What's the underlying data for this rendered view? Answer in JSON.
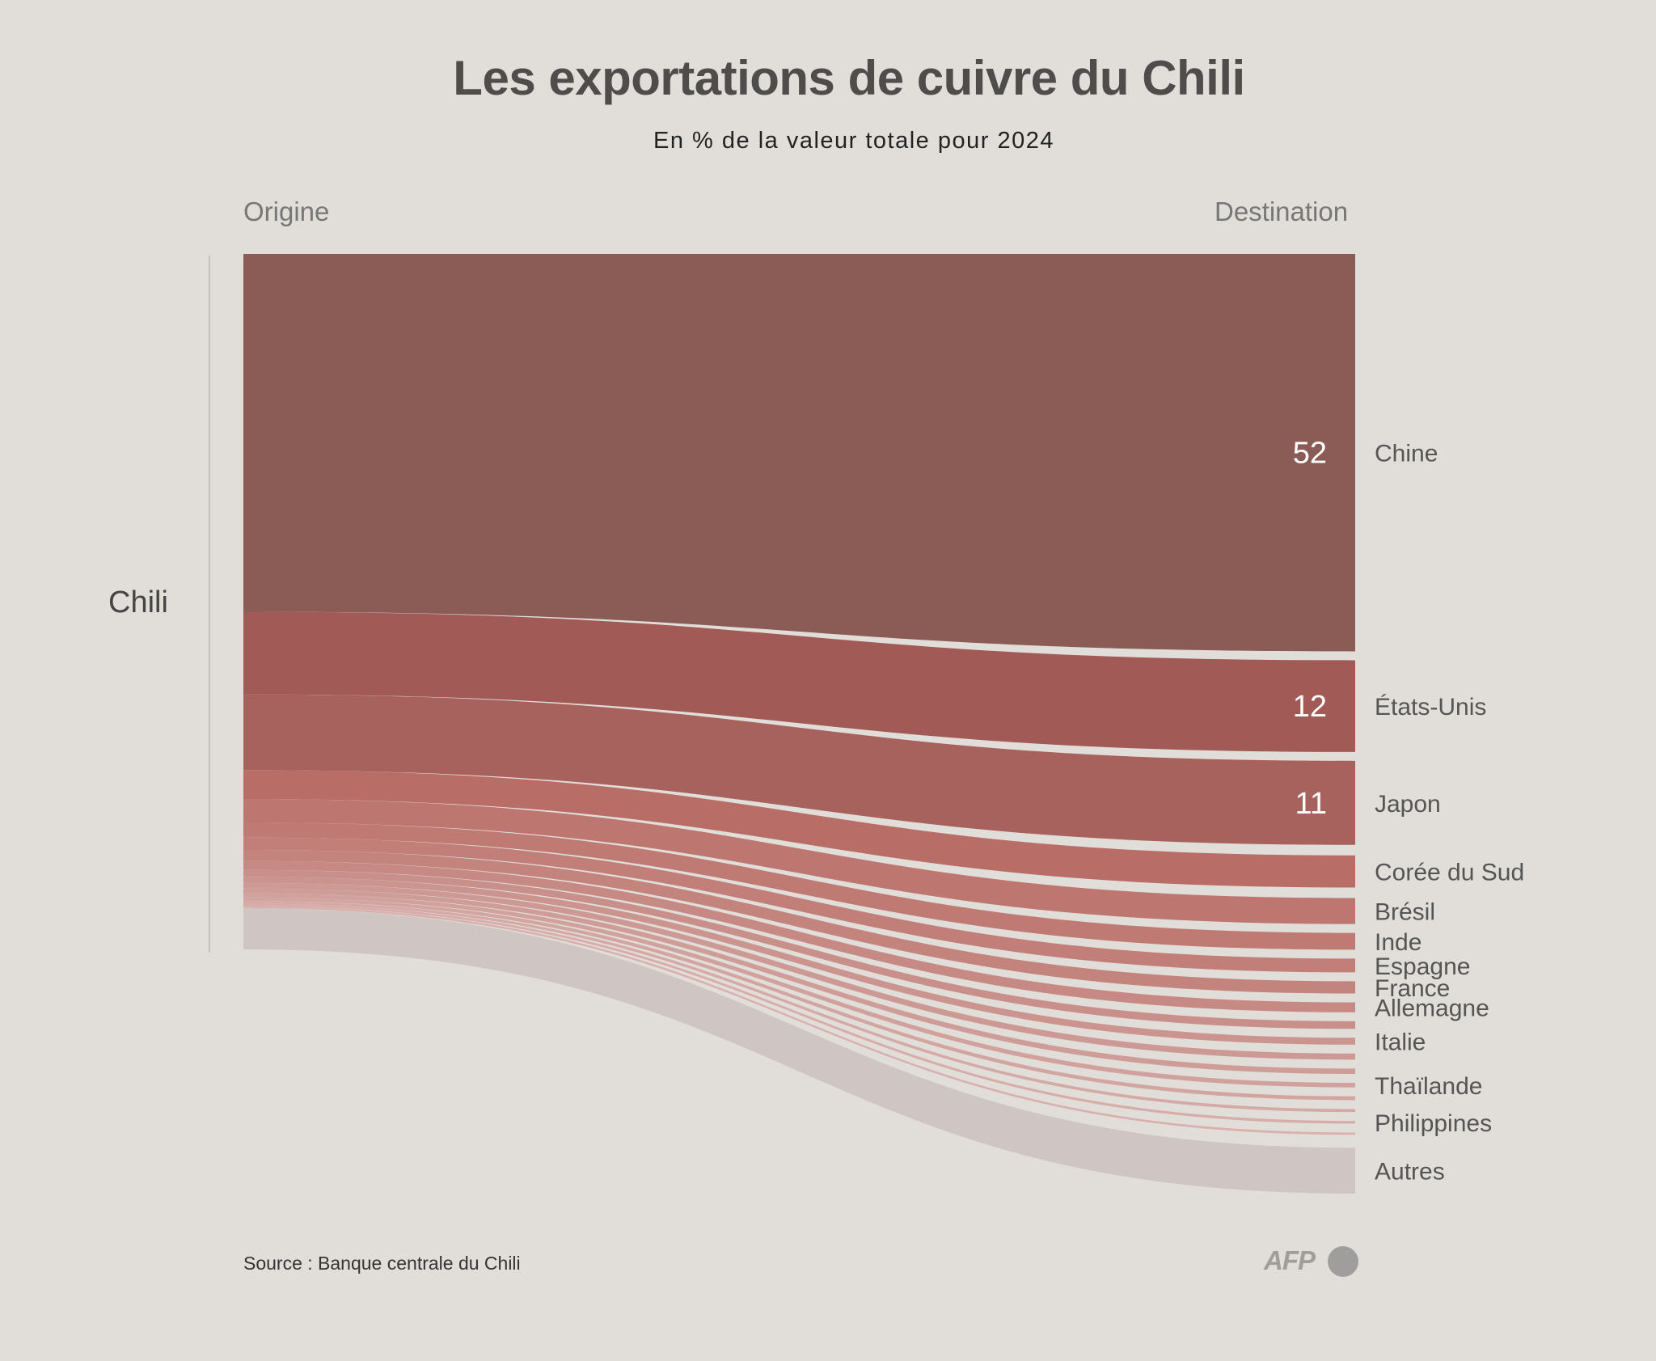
{
  "title": "Les exportations de cuivre du Chili",
  "subtitle": "En % de la valeur totale pour 2024",
  "column_headers": {
    "origin": "Origine",
    "destination": "Destination"
  },
  "source": "Source : Banque centrale du Chili",
  "logo_text": "AFP",
  "colors": {
    "background": "#e1deda",
    "chine": "#8b5b55",
    "etats_unis": "#a15a55",
    "japon": "#a8625e",
    "coree": "#b96d67",
    "others": "#cfc5c3",
    "label_value": "#ffffff",
    "label_dest": "#555555"
  },
  "chart_data": {
    "type": "sankey",
    "title": "Les exportations de cuivre du Chili",
    "subtitle": "En % de la valeur totale pour 2024",
    "source_node": "Chili",
    "unit": "% de la valeur totale",
    "flows": [
      {
        "target": "Chine",
        "value": 52,
        "value_label": "52",
        "color": "#8b5b55"
      },
      {
        "target": "États-Unis",
        "value": 12,
        "value_label": "12",
        "color": "#a15a55"
      },
      {
        "target": "Japon",
        "value": 11,
        "value_label": "11",
        "color": "#a8625e"
      },
      {
        "target": "Corée du Sud",
        "value": 4.2,
        "color": "#b96d67"
      },
      {
        "target": "Brésil",
        "value": 3.4,
        "color": "#bd7670"
      },
      {
        "target": "Inde",
        "value": 2.2,
        "color": "#c07a74"
      },
      {
        "target": "Espagne",
        "value": 1.8,
        "color": "#c27e78"
      },
      {
        "target": "France",
        "value": 1.6,
        "color": "#c4847e"
      },
      {
        "target": "Allemagne",
        "value": 1.3,
        "color": "#c68984"
      },
      {
        "target": "",
        "value": 1.0,
        "color": "#c98f8a"
      },
      {
        "target": "Italie",
        "value": 0.9,
        "color": "#cb948f"
      },
      {
        "target": "",
        "value": 0.8,
        "color": "#cd9994"
      },
      {
        "target": "",
        "value": 0.7,
        "color": "#cf9d98"
      },
      {
        "target": "Thaïlande",
        "value": 0.6,
        "color": "#d1a19d"
      },
      {
        "target": "",
        "value": 0.5,
        "color": "#d3a5a1"
      },
      {
        "target": "",
        "value": 0.4,
        "color": "#d5a9a5"
      },
      {
        "target": "Philippines",
        "value": 0.35,
        "color": "#d7aca9"
      },
      {
        "target": "",
        "value": 0.3,
        "color": "#d9b0ad"
      },
      {
        "target": "Autres",
        "value": 6.0,
        "color": "#cfc5c3"
      }
    ]
  }
}
